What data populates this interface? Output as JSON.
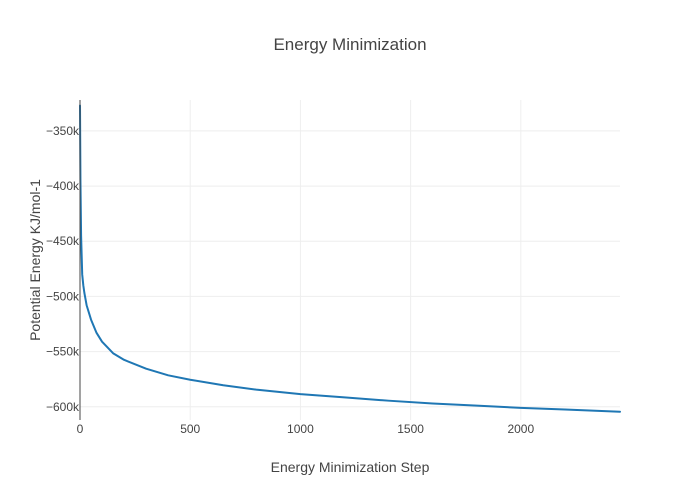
{
  "chart_data": {
    "type": "line",
    "title": "Energy Minimization",
    "xlabel": "Energy Minimization Step",
    "ylabel": "Potential Energy KJ/mol-1",
    "xlim": [
      0,
      2450
    ],
    "ylim": [
      -612000,
      -322000
    ],
    "x_ticks": [
      0,
      500,
      1000,
      1500,
      2000
    ],
    "x_tick_labels": [
      "0",
      "500",
      "1000",
      "1500",
      "2000"
    ],
    "y_ticks": [
      -350000,
      -400000,
      -450000,
      -500000,
      -550000,
      -600000
    ],
    "y_tick_labels": [
      "−350k",
      "−400k",
      "−450k",
      "−500k",
      "−550k",
      "−600k"
    ],
    "grid": true,
    "legend": false,
    "color": "#1f77b4",
    "series": [
      {
        "x": [
          0,
          2,
          5,
          10,
          15,
          20,
          30,
          50,
          75,
          100,
          150,
          200,
          300,
          400,
          500,
          650,
          800,
          1000,
          1200,
          1400,
          1600,
          1800,
          2000,
          2200,
          2450
        ],
        "y": [
          -327000,
          -395000,
          -445000,
          -480000,
          -490000,
          -497000,
          -508000,
          -521000,
          -533000,
          -541000,
          -551500,
          -557500,
          -565500,
          -571500,
          -575500,
          -580500,
          -584500,
          -588500,
          -591500,
          -594500,
          -597000,
          -599000,
          -601000,
          -602500,
          -604500
        ]
      }
    ]
  }
}
